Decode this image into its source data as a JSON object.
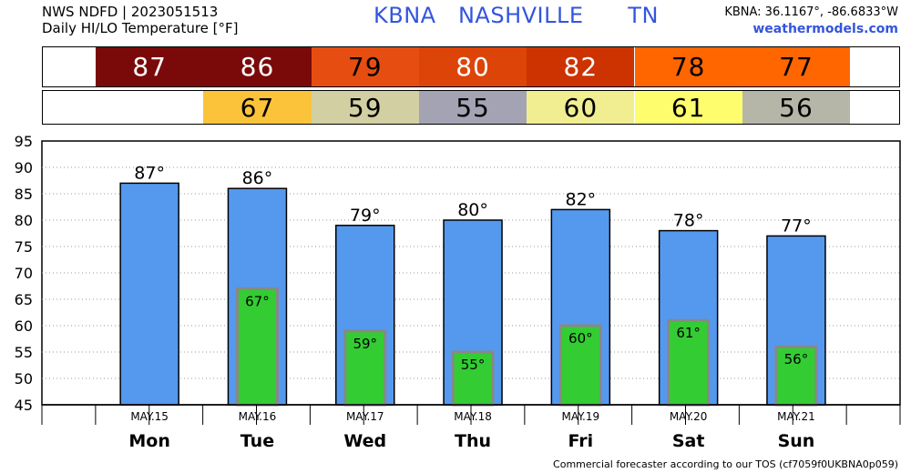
{
  "header": {
    "title_line1": "NWS NDFD | 2023051513",
    "title_line2": "Daily HI/LO Temperature [°F]",
    "station": "KBNA   NASHVILLE      TN",
    "coords": "KBNA: 36.1167°, -86.6833°W",
    "site": "weathermodels.com"
  },
  "footer": "Commercial forecaster according to our TOS (cf7059f0UKBNA0p059)",
  "colors": {
    "hi_bar": "#5599ee",
    "lo_bar": "#33cc33",
    "lo_bar_border": "#888888"
  },
  "chart_data": {
    "type": "bar",
    "categories": [
      "Mon",
      "Tue",
      "Wed",
      "Thu",
      "Fri",
      "Sat",
      "Sun"
    ],
    "dates": [
      "MAY.15",
      "MAY.16",
      "MAY.17",
      "MAY.18",
      "MAY.19",
      "MAY.20",
      "MAY.21"
    ],
    "series": [
      {
        "values": [
          87,
          86,
          79,
          80,
          82,
          78,
          77
        ]
      },
      {
        "values": [
          null,
          67,
          59,
          55,
          60,
          61,
          56
        ]
      }
    ],
    "hi_labels": [
      "87°",
      "86°",
      "79°",
      "80°",
      "82°",
      "78°",
      "77°"
    ],
    "lo_labels": [
      "",
      "67°",
      "59°",
      "55°",
      "60°",
      "61°",
      "56°"
    ],
    "hi_strip": [
      "87",
      "86",
      "79",
      "80",
      "82",
      "78",
      "77"
    ],
    "lo_strip": [
      "",
      "67",
      "59",
      "55",
      "60",
      "61",
      "56"
    ],
    "hi_strip_colors": [
      "#7a0a0a",
      "#7a0a0a",
      "#e54e10",
      "#dd4408",
      "#cc3300",
      "#ff6600",
      "#ff6600"
    ],
    "hi_strip_text_colors": [
      "#ffffff",
      "#ffffff",
      "#000000",
      "#ffffff",
      "#ffffff",
      "#000000",
      "#000000"
    ],
    "lo_strip_colors": [
      "#ffffff",
      "#fbc33a",
      "#d2d0a2",
      "#a3a3b3",
      "#f0ee90",
      "#fdfd6e",
      "#b6b6a8"
    ],
    "yticks": [
      "45",
      "50",
      "55",
      "60",
      "65",
      "70",
      "75",
      "80",
      "85",
      "90",
      "95"
    ],
    "ylim": [
      45,
      95
    ],
    "grid": true
  }
}
